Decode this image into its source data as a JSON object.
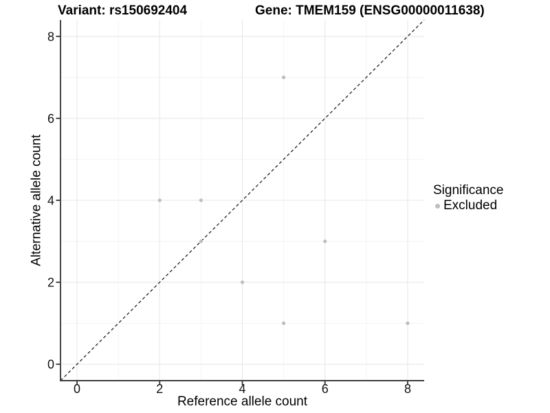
{
  "title": {
    "variant": "Variant: rs150692404",
    "gene": "Gene: TMEM159 (ENSG00000011638)"
  },
  "axes": {
    "x_label": "Reference allele count",
    "y_label": "Alternative allele count"
  },
  "legend": {
    "title": "Significance",
    "items": [
      {
        "label": "Excluded",
        "color": "#bebebe"
      }
    ]
  },
  "chart_data": {
    "type": "scatter",
    "title": "Variant: rs150692404 — Gene: TMEM159 (ENSG00000011638)",
    "xlabel": "Reference allele count",
    "ylabel": "Alternative allele count",
    "xlim": [
      -0.4,
      8.4
    ],
    "ylim": [
      -0.4,
      8.4
    ],
    "xticks": [
      0,
      2,
      4,
      6,
      8
    ],
    "yticks": [
      0,
      2,
      4,
      6,
      8
    ],
    "minor_ticks_x": [
      1,
      3,
      5,
      7
    ],
    "minor_ticks_y": [
      1,
      3,
      5,
      7
    ],
    "grid": true,
    "legend_position": "right",
    "series": [
      {
        "name": "Excluded",
        "color": "#bebebe",
        "points": [
          {
            "x": 2,
            "y": 4
          },
          {
            "x": 3,
            "y": 4
          },
          {
            "x": 3,
            "y": 3
          },
          {
            "x": 4,
            "y": 2
          },
          {
            "x": 5,
            "y": 1
          },
          {
            "x": 5,
            "y": 7
          },
          {
            "x": 6,
            "y": 3
          },
          {
            "x": 8,
            "y": 1
          }
        ]
      }
    ],
    "reference_line": {
      "type": "identity",
      "slope": 1,
      "intercept": 0,
      "style": "dashed",
      "color": "#111111"
    }
  },
  "colors": {
    "background": "#ffffff",
    "point": "#bebebe",
    "grid_major": "#e7e7e7",
    "grid_minor": "#f3f3f3",
    "axis_line": "#3c3c3c",
    "tick_text": "#111111",
    "text": "#000000"
  }
}
